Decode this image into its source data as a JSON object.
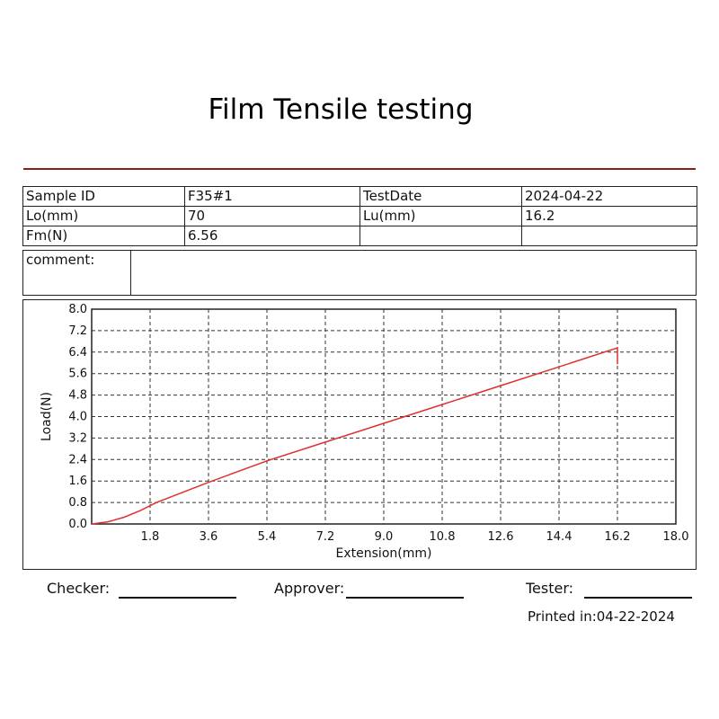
{
  "report": {
    "title": "Film Tensile testing",
    "info_rows": [
      [
        "Sample ID",
        "F35#1",
        "TestDate",
        "2024-04-22"
      ],
      [
        "Lo(mm)",
        "70",
        "Lu(mm)",
        "16.2"
      ],
      [
        "Fm(N)",
        "6.56",
        "",
        ""
      ]
    ],
    "comment_label": "comment:",
    "checker_label": "Checker:",
    "approver_label": "Approver:",
    "tester_label": "Tester:",
    "printed": "Printed in:04-22-2024"
  },
  "colors": {
    "accent_rule": "#8a1c1c",
    "curve": "#e03030"
  },
  "chart_data": {
    "type": "line",
    "title": "",
    "xlabel": "Extension(mm)",
    "ylabel": "Load(N)",
    "xlim": [
      0,
      18
    ],
    "ylim": [
      0,
      8
    ],
    "x_ticks": [
      "1.8",
      "3.6",
      "5.4",
      "7.2",
      "9.0",
      "10.8",
      "12.6",
      "14.4",
      "16.2",
      "18.0"
    ],
    "y_ticks": [
      "0.0",
      "0.8",
      "1.6",
      "2.4",
      "3.2",
      "4.0",
      "4.8",
      "5.6",
      "6.4",
      "7.2",
      "8.0"
    ],
    "grid": true,
    "series": [
      {
        "x": [
          0,
          0.5,
          1.0,
          1.5,
          2.0,
          3.6,
          5.4,
          7.2,
          9.0,
          10.8,
          12.6,
          14.4,
          16.2,
          16.2
        ],
        "y": [
          0,
          0.08,
          0.25,
          0.5,
          0.8,
          1.55,
          2.35,
          3.05,
          3.75,
          4.45,
          5.15,
          5.85,
          6.56,
          5.95
        ]
      }
    ]
  }
}
